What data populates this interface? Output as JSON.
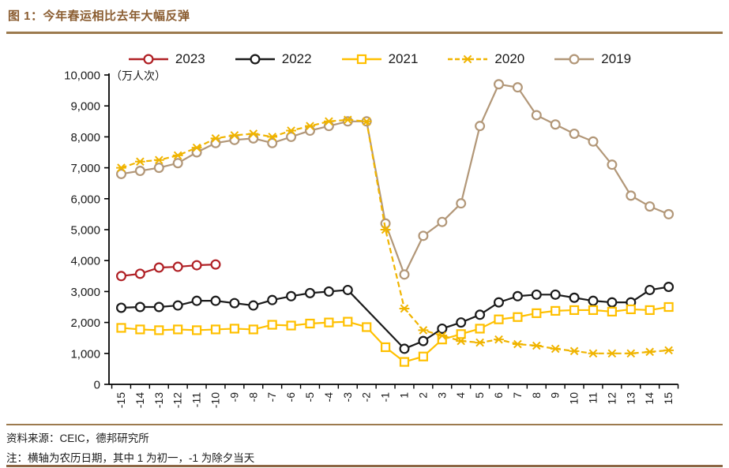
{
  "figure": {
    "title": "图 1：今年春运相比去年大幅反弹",
    "source_line": "资料来源：CEIC，德邦研究所",
    "note_line": "注：横轴为农历日期，其中 1 为初一，-1 为除夕当天"
  },
  "legend": [
    {
      "label": "2023",
      "color": "#b02025",
      "marker": "circle",
      "dash": false
    },
    {
      "label": "2022",
      "color": "#1a1a1a",
      "marker": "circle",
      "dash": false
    },
    {
      "label": "2021",
      "color": "#ffc000",
      "marker": "square",
      "dash": false
    },
    {
      "label": "2020",
      "color": "#f0b400",
      "marker": "star",
      "dash": true
    },
    {
      "label": "2019",
      "color": "#b29778",
      "marker": "circle",
      "dash": false
    }
  ],
  "chart_data": {
    "type": "line",
    "title": "今年春运相比去年大幅反弹",
    "unit_label": "（万人次）",
    "xlabel": "农历日期（1 为初一，-1 为除夕当天）",
    "ylabel": "万人次",
    "ylim": [
      0,
      10000
    ],
    "ystep": 1000,
    "grid": false,
    "legend_position": "top",
    "categories": [
      "-15",
      "-14",
      "-13",
      "-12",
      "-11",
      "-10",
      "-9",
      "-8",
      "-7",
      "-6",
      "-5",
      "-4",
      "-3",
      "-2",
      "-1",
      "1",
      "2",
      "3",
      "4",
      "5",
      "6",
      "7",
      "8",
      "9",
      "10",
      "11",
      "12",
      "13",
      "14",
      "15"
    ],
    "series": [
      {
        "name": "2023",
        "color": "#b02025",
        "marker": "circle",
        "dash": false,
        "values": [
          3500,
          3575,
          3775,
          3800,
          3850,
          3875,
          null,
          null,
          null,
          null,
          null,
          null,
          null,
          null,
          null,
          null,
          null,
          null,
          null,
          null,
          null,
          null,
          null,
          null,
          null,
          null,
          null,
          null,
          null,
          null
        ]
      },
      {
        "name": "2022",
        "color": "#1a1a1a",
        "marker": "circle",
        "dash": false,
        "values": [
          2475,
          2500,
          2500,
          2550,
          2700,
          2700,
          2625,
          2550,
          2725,
          2850,
          2950,
          3000,
          3050,
          null,
          null,
          1150,
          1400,
          1800,
          2000,
          2250,
          2650,
          2850,
          2900,
          2900,
          2800,
          2700,
          2650,
          2650,
          3050,
          3150
        ]
      },
      {
        "name": "2021",
        "color": "#ffc000",
        "marker": "square",
        "dash": false,
        "values": [
          1825,
          1775,
          1750,
          1775,
          1750,
          1775,
          1800,
          1775,
          1925,
          1900,
          1965,
          2000,
          2025,
          1850,
          1200,
          725,
          900,
          1450,
          1625,
          1800,
          2100,
          2175,
          2300,
          2375,
          2400,
          2400,
          2350,
          2425,
          2400,
          2500
        ]
      },
      {
        "name": "2020",
        "color": "#f0b400",
        "marker": "star",
        "dash": true,
        "values": [
          7000,
          7200,
          7250,
          7400,
          7650,
          7950,
          8050,
          8100,
          8000,
          8200,
          8350,
          8500,
          8550,
          8500,
          5000,
          2450,
          1750,
          1575,
          1400,
          1350,
          1450,
          1300,
          1250,
          1150,
          1075,
          1000,
          1000,
          1000,
          1050,
          1100
        ]
      },
      {
        "name": "2019",
        "color": "#b29778",
        "marker": "circle",
        "dash": false,
        "values": [
          6800,
          6900,
          7000,
          7150,
          7500,
          7800,
          7900,
          7950,
          7800,
          8000,
          8200,
          8350,
          8500,
          8500,
          5200,
          3550,
          4800,
          5250,
          5850,
          8350,
          9700,
          9600,
          8700,
          8400,
          8100,
          7850,
          7100,
          6100,
          5750,
          5500
        ]
      }
    ]
  }
}
